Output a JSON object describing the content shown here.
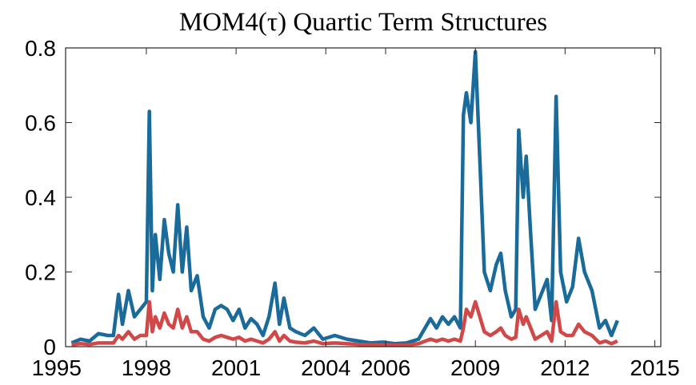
{
  "chart_data": {
    "type": "line",
    "title": "MOM4(τ) Quartic Term Structures",
    "x": [
      1995.5,
      1995.8,
      1996.1,
      1996.4,
      1996.7,
      1996.9,
      1997.07,
      1997.2,
      1997.4,
      1997.6,
      1997.8,
      1998.0,
      1998.1,
      1998.2,
      1998.3,
      1998.45,
      1998.6,
      1998.75,
      1998.9,
      1999.05,
      1999.2,
      1999.35,
      1999.5,
      1999.7,
      1999.9,
      2000.1,
      2000.3,
      2000.5,
      2000.7,
      2000.9,
      2001.1,
      2001.3,
      2001.5,
      2001.7,
      2001.9,
      2002.1,
      2002.3,
      2002.45,
      2002.6,
      2002.8,
      2003.0,
      2003.3,
      2003.6,
      2003.9,
      2004.3,
      2004.7,
      2005.1,
      2005.5,
      2005.9,
      2006.3,
      2006.7,
      2007.1,
      2007.5,
      2007.7,
      2007.9,
      2008.1,
      2008.3,
      2008.5,
      2008.6,
      2008.7,
      2008.85,
      2009.0,
      2009.15,
      2009.3,
      2009.5,
      2009.7,
      2009.85,
      2010.0,
      2010.2,
      2010.35,
      2010.45,
      2010.6,
      2010.7,
      2010.85,
      2011.0,
      2011.2,
      2011.4,
      2011.55,
      2011.7,
      2011.85,
      2012.05,
      2012.25,
      2012.45,
      2012.65,
      2012.9,
      2013.15,
      2013.35,
      2013.55,
      2013.75
    ],
    "series": [
      {
        "color": "#1a6a9a",
        "values": [
          0.01,
          0.02,
          0.015,
          0.035,
          0.03,
          0.03,
          0.14,
          0.06,
          0.15,
          0.08,
          0.1,
          0.12,
          0.63,
          0.15,
          0.3,
          0.18,
          0.34,
          0.25,
          0.2,
          0.38,
          0.2,
          0.32,
          0.15,
          0.19,
          0.08,
          0.05,
          0.1,
          0.11,
          0.1,
          0.07,
          0.1,
          0.05,
          0.075,
          0.06,
          0.03,
          0.08,
          0.17,
          0.06,
          0.13,
          0.05,
          0.04,
          0.03,
          0.05,
          0.02,
          0.03,
          0.02,
          0.015,
          0.01,
          0.012,
          0.008,
          0.01,
          0.02,
          0.075,
          0.05,
          0.08,
          0.06,
          0.08,
          0.05,
          0.62,
          0.68,
          0.6,
          0.79,
          0.5,
          0.2,
          0.15,
          0.22,
          0.25,
          0.15,
          0.08,
          0.1,
          0.58,
          0.4,
          0.51,
          0.3,
          0.1,
          0.14,
          0.18,
          0.07,
          0.67,
          0.2,
          0.12,
          0.16,
          0.29,
          0.2,
          0.15,
          0.05,
          0.07,
          0.03,
          0.07
        ]
      },
      {
        "color": "#d04848",
        "values": [
          0.005,
          0.008,
          0.006,
          0.01,
          0.01,
          0.01,
          0.03,
          0.02,
          0.04,
          0.02,
          0.03,
          0.03,
          0.12,
          0.04,
          0.08,
          0.05,
          0.09,
          0.06,
          0.05,
          0.1,
          0.05,
          0.08,
          0.04,
          0.04,
          0.02,
          0.015,
          0.025,
          0.03,
          0.025,
          0.02,
          0.025,
          0.015,
          0.02,
          0.015,
          0.01,
          0.02,
          0.04,
          0.015,
          0.03,
          0.015,
          0.012,
          0.01,
          0.015,
          0.008,
          0.01,
          0.008,
          0.006,
          0.005,
          0.005,
          0.004,
          0.004,
          0.008,
          0.02,
          0.015,
          0.02,
          0.015,
          0.02,
          0.015,
          0.05,
          0.1,
          0.08,
          0.12,
          0.08,
          0.04,
          0.03,
          0.04,
          0.05,
          0.03,
          0.02,
          0.025,
          0.1,
          0.06,
          0.08,
          0.05,
          0.02,
          0.03,
          0.04,
          0.015,
          0.12,
          0.04,
          0.03,
          0.03,
          0.06,
          0.04,
          0.03,
          0.01,
          0.015,
          0.008,
          0.015
        ]
      }
    ],
    "xlim": [
      1995.3,
      2015.2
    ],
    "xticks": [
      1995,
      1998,
      2001,
      2004,
      2006,
      2009,
      2012,
      2015
    ],
    "ylim": [
      0,
      0.8
    ],
    "yticks": [
      0,
      0.2,
      0.4,
      0.6,
      0.8
    ]
  }
}
